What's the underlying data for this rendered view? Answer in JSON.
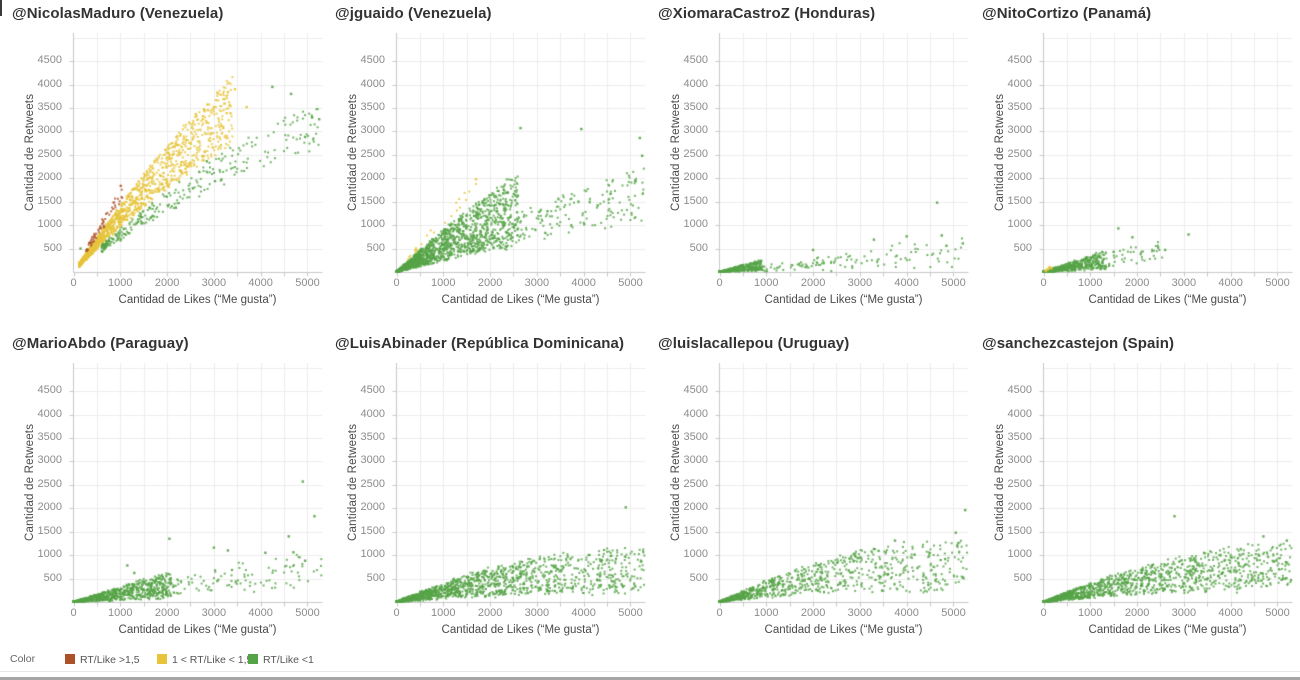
{
  "page": {
    "background": "#ffffff"
  },
  "colors": {
    "red": "#ad5228",
    "yellow": "#e7c43a",
    "green": "#55a347",
    "grid": "#ededed",
    "axis_line": "#c8c8c8",
    "tick_label": "#8c8c8c",
    "axis_title": "#4b4b4b",
    "plot_title": "#333333"
  },
  "axes": {
    "x_label": "Cantidad de Likes (“Me gusta”)",
    "y_label": "Cantidad de Retweets",
    "x_ticks": [
      0,
      1000,
      2000,
      3000,
      4000,
      5000
    ],
    "y_ticks": [
      500,
      1000,
      1500,
      2000,
      2500,
      3000,
      3500,
      4000,
      4500
    ],
    "xlim": [
      0,
      5300
    ],
    "ylim": [
      0,
      5100
    ],
    "grid_step": 500,
    "grid_on": true
  },
  "legend": {
    "title": "Color",
    "position": "bottom-left",
    "items": [
      {
        "key": "red",
        "label": "RT/Like >1,5"
      },
      {
        "key": "yellow",
        "label": "1 < RT/Like < 1,5"
      },
      {
        "key": "green",
        "label": "RT/Like <1"
      }
    ]
  },
  "chart_data": [
    {
      "type": "scatter",
      "title": "@NicolasMaduro (Venezuela)",
      "xlabel": "Cantidad de Likes (“Me gusta”)",
      "ylabel": "Cantidad de Retweets",
      "description": "Dense yellow band (1<RT/Like<1.5) rising from origin to ~(3300,3700); green points (RT/Like<1) along lower edge and far tail to (5200,3300); sienna points (RT/Like>1.5) on upper-left edge ~x 250-1050.",
      "clusters": [
        {
          "color": "yellow",
          "n": 1500,
          "x_min": 120,
          "x_max": 3400,
          "x_bias": 2.1,
          "ratio_min": 1.0,
          "ratio_max": 1.52,
          "damp": 0.3
        },
        {
          "color": "green",
          "n": 300,
          "x_min": 600,
          "x_max": 5300,
          "x_bias": 1.7,
          "ratio_min": 0.72,
          "ratio_max": 0.98,
          "damp": 0.3
        },
        {
          "color": "red",
          "n": 60,
          "x_min": 260,
          "x_max": 1050,
          "x_bias": 1.2,
          "ratio_min": 1.5,
          "ratio_max": 1.85,
          "damp": 0
        }
      ],
      "outliers": [
        {
          "color": "yellow",
          "x": 3450,
          "y": 3900
        },
        {
          "color": "yellow",
          "x": 3700,
          "y": 3520
        },
        {
          "color": "yellow",
          "x": 3300,
          "y": 3840
        },
        {
          "color": "green",
          "x": 4250,
          "y": 3950
        },
        {
          "color": "green",
          "x": 4650,
          "y": 3800
        },
        {
          "color": "green",
          "x": 5100,
          "y": 3300
        },
        {
          "color": "green",
          "x": 4950,
          "y": 2880
        },
        {
          "color": "green",
          "x": 5250,
          "y": 3260
        },
        {
          "color": "green",
          "x": 150,
          "y": 500
        }
      ]
    },
    {
      "type": "scatter",
      "title": "@jguaido (Venezuela)",
      "xlabel": "Cantidad de Likes (“Me gusta”)",
      "ylabel": "Cantidad de Retweets",
      "description": "Dense green wedge from origin fanning to ~(5200,2500); a few yellow points on the upper edge x 250-1800.",
      "clusters": [
        {
          "color": "green",
          "n": 1700,
          "x_min": 0,
          "x_max": 2600,
          "x_bias": 2.0,
          "ratio_min": 0.25,
          "ratio_max": 0.95,
          "damp": 0.3
        },
        {
          "color": "green",
          "n": 230,
          "x_min": 1500,
          "x_max": 5300,
          "x_bias": 1.15,
          "ratio_min": 0.28,
          "ratio_max": 0.55,
          "damp": 0.25
        },
        {
          "color": "yellow",
          "n": 22,
          "x_min": 250,
          "x_max": 1800,
          "x_bias": 1.3,
          "ratio_min": 1.0,
          "ratio_max": 1.22,
          "damp": 0.1
        }
      ],
      "outliers": [
        {
          "color": "green",
          "x": 2650,
          "y": 3070
        },
        {
          "color": "green",
          "x": 3950,
          "y": 3050
        },
        {
          "color": "green",
          "x": 5200,
          "y": 2860
        },
        {
          "color": "green",
          "x": 5250,
          "y": 2480
        },
        {
          "color": "green",
          "x": 5100,
          "y": 1950
        },
        {
          "color": "green",
          "x": 4300,
          "y": 1420
        },
        {
          "color": "yellow",
          "x": 1700,
          "y": 1980
        }
      ]
    },
    {
      "type": "scatter",
      "title": "@XiomaraCastroZ (Honduras)",
      "xlabel": "Cantidad de Likes (“Me gusta”)",
      "ylabel": "Cantidad de Retweets",
      "description": "Small dense green blob near origin (x<900, y<300) with a sparse flat green tail to ~(5200,700); lone outlier near (4650,1480).",
      "clusters": [
        {
          "color": "green",
          "n": 420,
          "x_min": 0,
          "x_max": 900,
          "x_bias": 1.8,
          "ratio_min": 0.04,
          "ratio_max": 0.3,
          "damp": 0
        },
        {
          "color": "green",
          "n": 130,
          "x_min": 600,
          "x_max": 5300,
          "x_bias": 1.35,
          "ratio_min": 0.02,
          "ratio_max": 0.15,
          "damp": 0
        }
      ],
      "outliers": [
        {
          "color": "green",
          "x": 4650,
          "y": 1480
        },
        {
          "color": "green",
          "x": 3300,
          "y": 690
        },
        {
          "color": "green",
          "x": 4000,
          "y": 760
        },
        {
          "color": "green",
          "x": 4750,
          "y": 780
        },
        {
          "color": "green",
          "x": 5200,
          "y": 610
        },
        {
          "color": "green",
          "x": 2000,
          "y": 470
        },
        {
          "color": "green",
          "x": 4850,
          "y": 560
        }
      ]
    },
    {
      "type": "scatter",
      "title": "@NitoCortizo (Panamá)",
      "xlabel": "Cantidad de Likes (“Me gusta”)",
      "ylabel": "Cantidad de Retweets",
      "description": "Dense green cluster x<1350 y<450, sparse points to ~(3100,800); a few yellow points at the very origin.",
      "clusters": [
        {
          "color": "green",
          "n": 680,
          "x_min": 0,
          "x_max": 1350,
          "x_bias": 1.85,
          "ratio_min": 0.05,
          "ratio_max": 0.35,
          "damp": 0
        },
        {
          "color": "green",
          "n": 40,
          "x_min": 1300,
          "x_max": 2700,
          "x_bias": 1.0,
          "ratio_min": 0.08,
          "ratio_max": 0.28,
          "damp": 0
        },
        {
          "color": "yellow",
          "n": 12,
          "x_min": 0,
          "x_max": 180,
          "x_bias": 1.0,
          "ratio_min": 0.4,
          "ratio_max": 1.0,
          "damp": 0
        }
      ],
      "outliers": [
        {
          "color": "green",
          "x": 1600,
          "y": 930
        },
        {
          "color": "green",
          "x": 1900,
          "y": 740
        },
        {
          "color": "green",
          "x": 3100,
          "y": 800
        },
        {
          "color": "green",
          "x": 2450,
          "y": 520
        },
        {
          "color": "green",
          "x": 2600,
          "y": 470
        },
        {
          "color": "green",
          "x": 1500,
          "y": 430
        }
      ]
    },
    {
      "type": "scatter",
      "title": "@MarioAbdo (Paraguay)",
      "xlabel": "Cantidad de Likes (“Me gusta”)",
      "ylabel": "Cantidad de Retweets",
      "description": "Dense shallow green band to ~(2100,450), sparse spread to (5300,1050); outliers up to (4900,2570).",
      "clusters": [
        {
          "color": "green",
          "n": 900,
          "x_min": 0,
          "x_max": 2100,
          "x_bias": 1.7,
          "ratio_min": 0.05,
          "ratio_max": 0.33,
          "damp": 0.2
        },
        {
          "color": "green",
          "n": 130,
          "x_min": 1500,
          "x_max": 5300,
          "x_bias": 1.1,
          "ratio_min": 0.08,
          "ratio_max": 0.25,
          "damp": 0.15
        }
      ],
      "outliers": [
        {
          "color": "green",
          "x": 2050,
          "y": 1350
        },
        {
          "color": "green",
          "x": 3000,
          "y": 1160
        },
        {
          "color": "green",
          "x": 3300,
          "y": 1100
        },
        {
          "color": "green",
          "x": 4600,
          "y": 1400
        },
        {
          "color": "green",
          "x": 4900,
          "y": 2570
        },
        {
          "color": "green",
          "x": 5150,
          "y": 1830
        },
        {
          "color": "green",
          "x": 4950,
          "y": 880
        },
        {
          "color": "green",
          "x": 1150,
          "y": 780
        },
        {
          "color": "green",
          "x": 1300,
          "y": 620
        },
        {
          "color": "green",
          "x": 4100,
          "y": 1050
        },
        {
          "color": "green",
          "x": 4700,
          "y": 1060
        }
      ]
    },
    {
      "type": "scatter",
      "title": "@LuisAbinader (República Dominicana)",
      "xlabel": "Cantidad de Likes (“Me gusta”)",
      "ylabel": "Cantidad de Retweets",
      "description": "Broad dense green band over full x range, rising gently to ~(5200,1080); outlier at (4900,2020).",
      "clusters": [
        {
          "color": "green",
          "n": 1600,
          "x_min": 0,
          "x_max": 5300,
          "x_bias": 2.1,
          "ratio_min": 0.08,
          "ratio_max": 0.45,
          "damp": 0.55
        }
      ],
      "outliers": [
        {
          "color": "green",
          "x": 4900,
          "y": 2020
        }
      ]
    },
    {
      "type": "scatter",
      "title": "@luislacallepou (Uruguay)",
      "xlabel": "Cantidad de Likes (“Me gusta”)",
      "ylabel": "Cantidad de Retweets",
      "description": "Green band dense near origin spreading across full x range up to ~(5300,1350); outliers near (5250,1960) and (5050,1480).",
      "clusters": [
        {
          "color": "green",
          "n": 1000,
          "x_min": 0,
          "x_max": 5300,
          "x_bias": 2.2,
          "ratio_min": 0.1,
          "ratio_max": 0.5,
          "damp": 0.5
        }
      ],
      "outliers": [
        {
          "color": "green",
          "x": 5250,
          "y": 1960
        },
        {
          "color": "green",
          "x": 5050,
          "y": 1480
        },
        {
          "color": "green",
          "x": 3750,
          "y": 1310
        },
        {
          "color": "green",
          "x": 3300,
          "y": 1130
        },
        {
          "color": "green",
          "x": 3400,
          "y": 1090
        }
      ]
    },
    {
      "type": "scatter",
      "title": "@sanchezcastejon (Spain)",
      "xlabel": "Cantidad de Likes (“Me gusta”)",
      "ylabel": "Cantidad de Retweets",
      "description": "Dense green band rising from origin to ~(5300,1300); outlier at (2800,1830).",
      "clusters": [
        {
          "color": "green",
          "n": 1450,
          "x_min": 0,
          "x_max": 5300,
          "x_bias": 1.9,
          "ratio_min": 0.1,
          "ratio_max": 0.43,
          "damp": 0.45
        }
      ],
      "outliers": [
        {
          "color": "green",
          "x": 2800,
          "y": 1830
        },
        {
          "color": "green",
          "x": 4700,
          "y": 1400
        },
        {
          "color": "green",
          "x": 5200,
          "y": 1310
        }
      ]
    }
  ]
}
